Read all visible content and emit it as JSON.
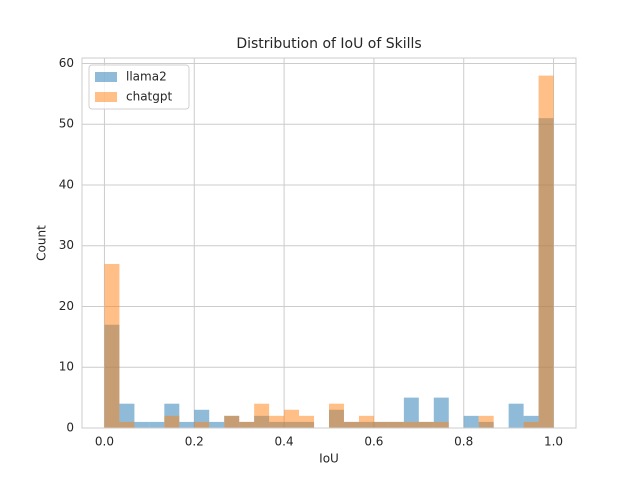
{
  "chart_data": {
    "type": "histogram",
    "title": "Distribution of IoU of Skills",
    "x_label": "IoU",
    "y_label": "Count",
    "bins": [
      0,
      0.0333,
      0.0667,
      0.1,
      0.1333,
      0.1667,
      0.2,
      0.2333,
      0.2667,
      0.3,
      0.3333,
      0.3667,
      0.4,
      0.4333,
      0.4667,
      0.5,
      0.5333,
      0.5667,
      0.6,
      0.6333,
      0.6667,
      0.7,
      0.7333,
      0.7667,
      0.8,
      0.8333,
      0.8667,
      0.9,
      0.9333,
      0.9667,
      1
    ],
    "series": [
      {
        "name": "llama2",
        "color": "#1f77b4",
        "values": [
          17,
          4,
          1,
          1,
          4,
          1,
          3,
          1,
          2,
          1,
          2,
          1,
          1,
          1,
          0,
          3,
          1,
          1,
          1,
          1,
          5,
          1,
          5,
          0,
          2,
          1,
          0,
          4,
          2,
          51
        ]
      },
      {
        "name": "chatgpt",
        "color": "#ff7f0e",
        "values": [
          27,
          1,
          0,
          0,
          2,
          0,
          1,
          0,
          2,
          1,
          4,
          2,
          3,
          2,
          0,
          4,
          1,
          2,
          1,
          1,
          1,
          1,
          1,
          0,
          0,
          2,
          0,
          0,
          1,
          58
        ]
      }
    ],
    "opacity": 0.5,
    "xlim": [
      -0.05,
      1.05
    ],
    "xticks": [
      {
        "value": 0,
        "label": "0.0"
      },
      0.2,
      0.4,
      0.6,
      0.8,
      {
        "value": 1,
        "label": "1.0"
      }
    ],
    "ylim": [
      0,
      60.9
    ],
    "yticks": [
      0,
      10,
      20,
      30,
      40,
      50,
      60
    ],
    "grid": true,
    "legend": "upper left"
  }
}
